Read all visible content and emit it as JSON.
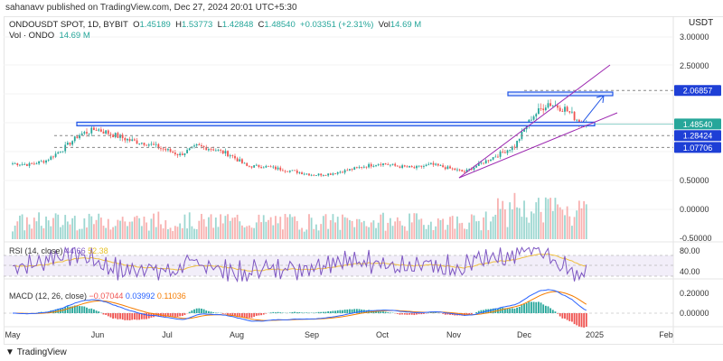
{
  "publisher": "sahanavv published on TradingView.com, Dec 27, 2024 20:01 UTC+5:30",
  "symbol": {
    "name": "ONDOUSDT SPOT, 1D, BYBIT",
    "open_label": "O",
    "open": "1.45189",
    "high_label": "H",
    "high": "1.53773",
    "low_label": "L",
    "low": "1.42848",
    "close_label": "C",
    "close": "1.48540",
    "change": "+0.03351 (+2.31%)",
    "vol_label": "Vol",
    "vol": "14.69 M"
  },
  "volume_legend": {
    "label": "Vol · ONDO",
    "value": "14.69 M"
  },
  "currency": "USDT",
  "price_axis": [
    "3.00000",
    "2.50000",
    "0.50000",
    "0.00000",
    "-0.50000"
  ],
  "price_tags": [
    {
      "value": "2.06857",
      "color": "#1e3fd6"
    },
    {
      "value": "1.48540",
      "color": "#26a69a"
    },
    {
      "value": "1.28424",
      "color": "#1e3fd6"
    },
    {
      "value": "1.07706",
      "color": "#1e3fd6"
    }
  ],
  "rsi": {
    "label": "RSI (14, close)",
    "value": "44.66",
    "ma": "52.38",
    "axis": [
      "80.00",
      "40.00"
    ]
  },
  "macd": {
    "label": "MACD (12, 26, close)",
    "hist": "−0.07044",
    "macd": "0.03992",
    "signal": "0.11036",
    "axis": [
      "0.20000",
      "0.00000"
    ]
  },
  "time_axis": [
    "May",
    "Jun",
    "Jul",
    "Aug",
    "Sep",
    "Oct",
    "Nov",
    "Dec",
    "2025",
    "Feb"
  ],
  "footer": "TradingView",
  "colors": {
    "up": "#26a69a",
    "down": "#ef5350",
    "rsi": "#7e57c2",
    "drawing": "#1e53e5",
    "channel": "#9c27b0"
  },
  "chart_data": {
    "type": "candlestick",
    "start": "2024-05-01",
    "interval": "1W",
    "closes": [
      0.8,
      0.78,
      0.85,
      1.05,
      1.3,
      1.4,
      1.3,
      1.2,
      1.15,
      1.05,
      0.95,
      1.1,
      1.05,
      0.95,
      0.75,
      0.75,
      0.7,
      0.65,
      0.6,
      0.62,
      0.68,
      0.75,
      0.8,
      0.75,
      0.72,
      0.78,
      0.72,
      0.65,
      0.8,
      0.95,
      1.1,
      1.6,
      1.85,
      1.75,
      1.5,
      1.4854
    ],
    "levels": [
      2.06857,
      1.4854,
      1.28424,
      1.07706
    ]
  }
}
